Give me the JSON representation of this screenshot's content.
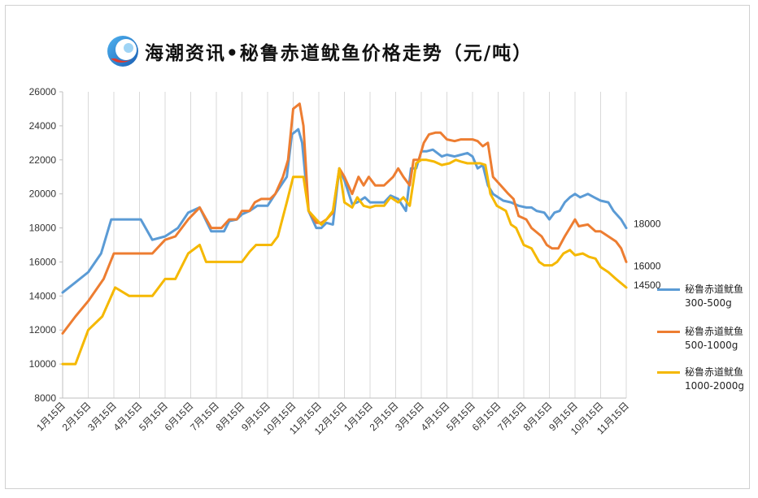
{
  "header": {
    "title": "海潮资讯•秘鲁赤道鱿鱼价格走势（元/吨）",
    "logo_icon": "haichao-logo-icon"
  },
  "chart_data": {
    "type": "line",
    "title": "海潮资讯•秘鲁赤道鱿鱼价格走势（元/吨）",
    "xlabel": "",
    "ylabel": "",
    "ylim": [
      8000,
      26000
    ],
    "yticks": [
      "8000",
      "10000",
      "12000",
      "14000",
      "16000",
      "18000",
      "20000",
      "22000",
      "24000",
      "26000"
    ],
    "xlim": [
      0,
      22
    ],
    "xticks": [
      "1月15日",
      "2月15日",
      "3月15日",
      "4月15日",
      "5月15日",
      "6月15日",
      "7月15日",
      "8月15日",
      "9月15日",
      "10月15日",
      "11月15日",
      "12月15日",
      "1月15日",
      "2月15日",
      "3月15日",
      "4月15日",
      "5月15日",
      "6月15日",
      "7月15日",
      "8月15日",
      "9月15日",
      "10月15日",
      "11月15日"
    ],
    "grid": "vertical",
    "legend": "right",
    "series": [
      {
        "name": "秘鲁赤道鱿鱼300-500g",
        "name_lines": [
          "秘鲁赤道鱿鱼",
          "300-500g"
        ],
        "color": "#5b9bd5",
        "end_label": "18000",
        "points": [
          [
            0,
            14200
          ],
          [
            0.5,
            14800
          ],
          [
            1,
            15400
          ],
          [
            1.5,
            16500
          ],
          [
            1.9,
            18500
          ],
          [
            2.5,
            18500
          ],
          [
            3.05,
            18500
          ],
          [
            3.5,
            17300
          ],
          [
            4,
            17500
          ],
          [
            4.5,
            18000
          ],
          [
            4.9,
            18900
          ],
          [
            5.35,
            19200
          ],
          [
            5.8,
            17800
          ],
          [
            6.3,
            17800
          ],
          [
            6.5,
            18400
          ],
          [
            6.8,
            18500
          ],
          [
            7,
            18800
          ],
          [
            7.3,
            19000
          ],
          [
            7.6,
            19300
          ],
          [
            8,
            19300
          ],
          [
            8.3,
            20000
          ],
          [
            8.75,
            21000
          ],
          [
            8.95,
            23500
          ],
          [
            9.2,
            23800
          ],
          [
            9.35,
            23000
          ],
          [
            9.6,
            19000
          ],
          [
            9.9,
            18000
          ],
          [
            10.1,
            18000
          ],
          [
            10.3,
            18300
          ],
          [
            10.55,
            18200
          ],
          [
            10.8,
            21500
          ],
          [
            11,
            20800
          ],
          [
            11.3,
            19400
          ],
          [
            11.5,
            19500
          ],
          [
            11.8,
            19800
          ],
          [
            12,
            19500
          ],
          [
            12.3,
            19500
          ],
          [
            12.55,
            19500
          ],
          [
            12.8,
            19900
          ],
          [
            13.1,
            19700
          ],
          [
            13.4,
            19000
          ],
          [
            13.6,
            21500
          ],
          [
            13.8,
            21500
          ],
          [
            14,
            22500
          ],
          [
            14.2,
            22500
          ],
          [
            14.45,
            22600
          ],
          [
            14.8,
            22200
          ],
          [
            15,
            22300
          ],
          [
            15.3,
            22200
          ],
          [
            15.55,
            22300
          ],
          [
            15.8,
            22400
          ],
          [
            16,
            22200
          ],
          [
            16.2,
            21500
          ],
          [
            16.4,
            21700
          ],
          [
            16.6,
            20500
          ],
          [
            16.8,
            20000
          ],
          [
            17.2,
            19600
          ],
          [
            17.5,
            19500
          ],
          [
            17.8,
            19300
          ],
          [
            18.1,
            19200
          ],
          [
            18.3,
            19200
          ],
          [
            18.5,
            19000
          ],
          [
            18.8,
            18900
          ],
          [
            19,
            18500
          ],
          [
            19.2,
            18900
          ],
          [
            19.4,
            19000
          ],
          [
            19.6,
            19500
          ],
          [
            19.8,
            19800
          ],
          [
            20,
            20000
          ],
          [
            20.2,
            19800
          ],
          [
            20.5,
            20000
          ],
          [
            20.75,
            19800
          ],
          [
            21,
            19600
          ],
          [
            21.3,
            19500
          ],
          [
            21.5,
            19000
          ],
          [
            21.8,
            18500
          ],
          [
            22,
            18000
          ]
        ]
      },
      {
        "name": "秘鲁赤道鱿鱼500-1000g",
        "name_lines": [
          "秘鲁赤道鱿鱼",
          "500-1000g"
        ],
        "color": "#ed7d31",
        "end_label": "16000",
        "points": [
          [
            0,
            11800
          ],
          [
            0.5,
            12800
          ],
          [
            1,
            13700
          ],
          [
            1.6,
            15000
          ],
          [
            2,
            16500
          ],
          [
            2.5,
            16500
          ],
          [
            3,
            16500
          ],
          [
            3.5,
            16500
          ],
          [
            4,
            17300
          ],
          [
            4.4,
            17500
          ],
          [
            4.9,
            18500
          ],
          [
            5.35,
            19200
          ],
          [
            5.8,
            18000
          ],
          [
            6.2,
            18000
          ],
          [
            6.5,
            18500
          ],
          [
            6.8,
            18500
          ],
          [
            7,
            19000
          ],
          [
            7.3,
            19000
          ],
          [
            7.5,
            19500
          ],
          [
            7.75,
            19700
          ],
          [
            8.1,
            19700
          ],
          [
            8.3,
            20000
          ],
          [
            8.6,
            21000
          ],
          [
            8.8,
            22000
          ],
          [
            9,
            25000
          ],
          [
            9.25,
            25300
          ],
          [
            9.4,
            24000
          ],
          [
            9.6,
            19000
          ],
          [
            9.9,
            18300
          ],
          [
            10.1,
            18300
          ],
          [
            10.3,
            18500
          ],
          [
            10.55,
            18900
          ],
          [
            10.8,
            21500
          ],
          [
            11,
            21000
          ],
          [
            11.3,
            20000
          ],
          [
            11.55,
            21000
          ],
          [
            11.75,
            20500
          ],
          [
            11.95,
            21000
          ],
          [
            12.2,
            20500
          ],
          [
            12.55,
            20500
          ],
          [
            12.9,
            21000
          ],
          [
            13.1,
            21500
          ],
          [
            13.3,
            21000
          ],
          [
            13.55,
            20500
          ],
          [
            13.7,
            22000
          ],
          [
            13.9,
            22000
          ],
          [
            14.1,
            23000
          ],
          [
            14.3,
            23500
          ],
          [
            14.55,
            23600
          ],
          [
            14.75,
            23600
          ],
          [
            15,
            23200
          ],
          [
            15.3,
            23100
          ],
          [
            15.55,
            23200
          ],
          [
            15.8,
            23200
          ],
          [
            16,
            23200
          ],
          [
            16.2,
            23100
          ],
          [
            16.4,
            22800
          ],
          [
            16.6,
            23000
          ],
          [
            16.8,
            21000
          ],
          [
            17.1,
            20500
          ],
          [
            17.4,
            20000
          ],
          [
            17.6,
            19700
          ],
          [
            17.8,
            18700
          ],
          [
            18.1,
            18500
          ],
          [
            18.3,
            18000
          ],
          [
            18.7,
            17500
          ],
          [
            18.9,
            17000
          ],
          [
            19.1,
            16800
          ],
          [
            19.35,
            16800
          ],
          [
            19.6,
            17500
          ],
          [
            19.8,
            18000
          ],
          [
            20,
            18500
          ],
          [
            20.15,
            18100
          ],
          [
            20.5,
            18200
          ],
          [
            20.8,
            17800
          ],
          [
            21,
            17800
          ],
          [
            21.3,
            17500
          ],
          [
            21.6,
            17200
          ],
          [
            21.8,
            16800
          ],
          [
            22,
            16000
          ]
        ]
      },
      {
        "name": "秘鲁赤道鱿鱼1000-2000g",
        "name_lines": [
          "秘鲁赤道鱿鱼",
          "1000-2000g"
        ],
        "color": "#f5b800",
        "end_label": "14500",
        "points": [
          [
            0,
            10000
          ],
          [
            0.5,
            10000
          ],
          [
            1,
            12000
          ],
          [
            1.55,
            12800
          ],
          [
            2.05,
            14500
          ],
          [
            2.6,
            14000
          ],
          [
            3,
            14000
          ],
          [
            3.5,
            14000
          ],
          [
            4,
            15000
          ],
          [
            4.4,
            15000
          ],
          [
            4.9,
            16500
          ],
          [
            5.35,
            17000
          ],
          [
            5.6,
            16000
          ],
          [
            6,
            16000
          ],
          [
            6.5,
            16000
          ],
          [
            6.8,
            16000
          ],
          [
            7,
            16000
          ],
          [
            7.3,
            16600
          ],
          [
            7.55,
            17000
          ],
          [
            7.9,
            17000
          ],
          [
            8.15,
            17000
          ],
          [
            8.4,
            17500
          ],
          [
            8.75,
            19500
          ],
          [
            9,
            21000
          ],
          [
            9.4,
            21000
          ],
          [
            9.6,
            19000
          ],
          [
            9.9,
            18500
          ],
          [
            10.1,
            18200
          ],
          [
            10.3,
            18500
          ],
          [
            10.55,
            19000
          ],
          [
            10.8,
            21500
          ],
          [
            11,
            19500
          ],
          [
            11.3,
            19200
          ],
          [
            11.5,
            19800
          ],
          [
            11.75,
            19300
          ],
          [
            12,
            19200
          ],
          [
            12.2,
            19300
          ],
          [
            12.55,
            19300
          ],
          [
            12.8,
            19800
          ],
          [
            13.1,
            19500
          ],
          [
            13.3,
            19800
          ],
          [
            13.55,
            19300
          ],
          [
            13.8,
            21800
          ],
          [
            14,
            22000
          ],
          [
            14.2,
            22000
          ],
          [
            14.5,
            21900
          ],
          [
            14.8,
            21700
          ],
          [
            15.1,
            21800
          ],
          [
            15.35,
            22000
          ],
          [
            15.55,
            21900
          ],
          [
            15.8,
            21800
          ],
          [
            16,
            21800
          ],
          [
            16.3,
            21800
          ],
          [
            16.5,
            21700
          ],
          [
            16.7,
            20000
          ],
          [
            16.95,
            19300
          ],
          [
            17.3,
            19000
          ],
          [
            17.5,
            18200
          ],
          [
            17.7,
            18000
          ],
          [
            18,
            17000
          ],
          [
            18.3,
            16800
          ],
          [
            18.6,
            16000
          ],
          [
            18.8,
            15800
          ],
          [
            19.1,
            15800
          ],
          [
            19.3,
            16000
          ],
          [
            19.55,
            16500
          ],
          [
            19.8,
            16700
          ],
          [
            20,
            16400
          ],
          [
            20.3,
            16500
          ],
          [
            20.55,
            16300
          ],
          [
            20.8,
            16200
          ],
          [
            21,
            15700
          ],
          [
            21.3,
            15400
          ],
          [
            21.6,
            15000
          ],
          [
            22,
            14500
          ]
        ]
      }
    ]
  }
}
